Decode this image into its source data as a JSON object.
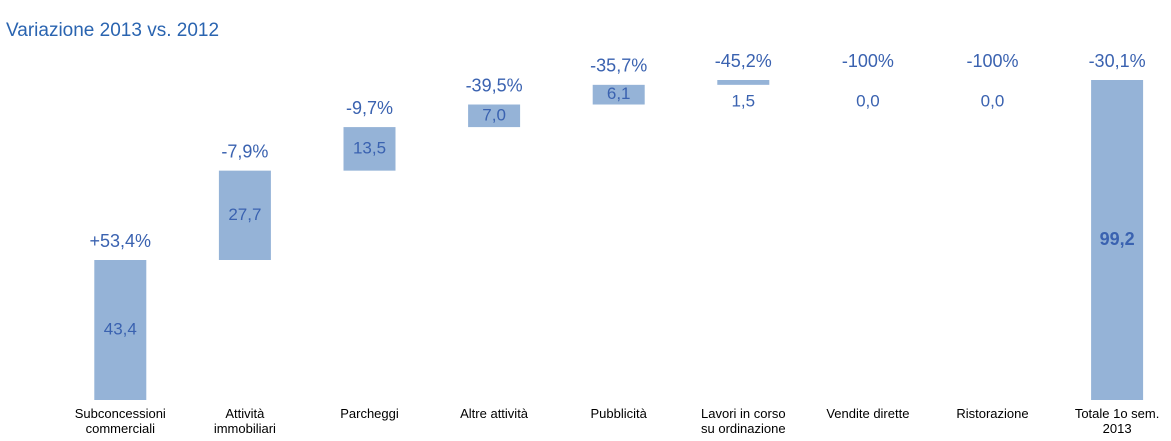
{
  "chart_data": {
    "type": "waterfall",
    "title": "Variazione 2013 vs.  2012",
    "categories": [
      "Subconcessioni\ncommerciali",
      "Attività\nimmobiliari",
      "Parcheggi",
      "Altre attività",
      "Pubblicità",
      "Lavori in corso\nsu ordinazione",
      "Vendite dirette",
      "Ristorazione",
      "Totale 1o sem.\n2013"
    ],
    "values": [
      43.4,
      27.7,
      13.5,
      7.0,
      6.1,
      1.5,
      0.0,
      0.0,
      99.2
    ],
    "value_labels": [
      "43,4",
      "27,7",
      "13,5",
      "7,0",
      "6,1",
      "1,5",
      "0,0",
      "0,0",
      "99,2"
    ],
    "changes": [
      53.4,
      -7.9,
      -9.7,
      -39.5,
      -35.7,
      -45.2,
      -100,
      -100,
      -30.1
    ],
    "change_labels": [
      "+53,4%",
      "-7,9%",
      "-9,7%",
      "-39,5%",
      "-35,7%",
      "-45,2%",
      "-100%",
      "-100%",
      "-30,1%"
    ],
    "total_index": 8,
    "color": "#95b3d7"
  }
}
